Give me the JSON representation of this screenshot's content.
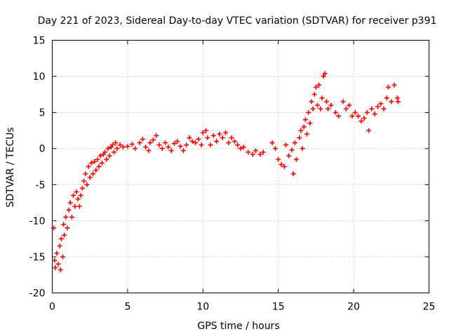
{
  "chart_data": {
    "type": "scatter",
    "title": "Day 221 of 2023, Sidereal Day-to-day VTEC variation (SDTVAR) for receiver p391",
    "xlabel": "GPS time / hours",
    "ylabel": "SDTVAR / TECUs",
    "xlim": [
      0,
      25
    ],
    "ylim": [
      -20,
      15
    ],
    "xticks": [
      "0",
      "5",
      "10",
      "15",
      "20",
      "25"
    ],
    "yticks": [
      "-20",
      "-15",
      "-10",
      "-5",
      "0",
      "5",
      "10",
      "15"
    ],
    "grid": true,
    "marker": "+",
    "color": "#ff0000",
    "series": [
      {
        "name": "SDTVAR",
        "points": [
          [
            0.1,
            -11.0
          ],
          [
            0.15,
            -15.5
          ],
          [
            0.2,
            -16.5
          ],
          [
            0.3,
            -14.5
          ],
          [
            0.4,
            -16.0
          ],
          [
            0.5,
            -13.5
          ],
          [
            0.55,
            -16.8
          ],
          [
            0.6,
            -12.5
          ],
          [
            0.7,
            -15.0
          ],
          [
            0.75,
            -10.5
          ],
          [
            0.8,
            -12.0
          ],
          [
            0.9,
            -9.5
          ],
          [
            1.0,
            -11.0
          ],
          [
            1.1,
            -8.5
          ],
          [
            1.2,
            -7.5
          ],
          [
            1.3,
            -9.5
          ],
          [
            1.4,
            -6.5
          ],
          [
            1.5,
            -8.0
          ],
          [
            1.6,
            -6.0
          ],
          [
            1.7,
            -7.0
          ],
          [
            1.8,
            -8.0
          ],
          [
            1.9,
            -6.5
          ],
          [
            2.0,
            -5.5
          ],
          [
            2.1,
            -4.5
          ],
          [
            2.2,
            -3.5
          ],
          [
            2.3,
            -5.0
          ],
          [
            2.4,
            -2.5
          ],
          [
            2.5,
            -4.0
          ],
          [
            2.6,
            -2.0
          ],
          [
            2.7,
            -3.5
          ],
          [
            2.8,
            -1.8
          ],
          [
            2.9,
            -3.0
          ],
          [
            3.0,
            -1.5
          ],
          [
            3.1,
            -2.5
          ],
          [
            3.2,
            -1.0
          ],
          [
            3.3,
            -2.0
          ],
          [
            3.4,
            -0.8
          ],
          [
            3.5,
            -0.5
          ],
          [
            3.6,
            -1.5
          ],
          [
            3.7,
            0.0
          ],
          [
            3.8,
            -1.0
          ],
          [
            3.9,
            0.2
          ],
          [
            4.0,
            0.5
          ],
          [
            4.1,
            -0.5
          ],
          [
            4.2,
            0.8
          ],
          [
            4.3,
            0.0
          ],
          [
            4.5,
            0.5
          ],
          [
            4.7,
            0.2
          ],
          [
            5.0,
            0.3
          ],
          [
            5.3,
            0.6
          ],
          [
            5.5,
            0.0
          ],
          [
            5.8,
            0.8
          ],
          [
            6.0,
            1.3
          ],
          [
            6.2,
            0.2
          ],
          [
            6.4,
            -0.3
          ],
          [
            6.5,
            0.8
          ],
          [
            6.7,
            1.2
          ],
          [
            6.9,
            1.8
          ],
          [
            7.1,
            0.5
          ],
          [
            7.3,
            0.0
          ],
          [
            7.5,
            0.8
          ],
          [
            7.7,
            0.2
          ],
          [
            7.9,
            -0.3
          ],
          [
            8.1,
            0.7
          ],
          [
            8.3,
            1.0
          ],
          [
            8.5,
            0.3
          ],
          [
            8.7,
            -0.3
          ],
          [
            8.9,
            0.5
          ],
          [
            9.1,
            1.5
          ],
          [
            9.3,
            1.0
          ],
          [
            9.5,
            0.8
          ],
          [
            9.7,
            1.3
          ],
          [
            9.9,
            0.5
          ],
          [
            10.0,
            2.2
          ],
          [
            10.2,
            2.5
          ],
          [
            10.3,
            1.5
          ],
          [
            10.5,
            0.5
          ],
          [
            10.7,
            1.8
          ],
          [
            10.9,
            1.0
          ],
          [
            11.1,
            2.0
          ],
          [
            11.3,
            1.5
          ],
          [
            11.5,
            2.2
          ],
          [
            11.7,
            0.8
          ],
          [
            11.9,
            1.5
          ],
          [
            12.1,
            1.0
          ],
          [
            12.3,
            0.5
          ],
          [
            12.5,
            0.0
          ],
          [
            12.7,
            0.2
          ],
          [
            13.0,
            -0.5
          ],
          [
            13.3,
            -0.8
          ],
          [
            13.5,
            -0.3
          ],
          [
            13.8,
            -0.8
          ],
          [
            14.0,
            -0.5
          ],
          [
            14.6,
            0.8
          ],
          [
            14.8,
            0.0
          ],
          [
            15.0,
            -1.5
          ],
          [
            15.2,
            -2.2
          ],
          [
            15.4,
            -2.5
          ],
          [
            15.5,
            0.5
          ],
          [
            15.7,
            -1.0
          ],
          [
            15.9,
            -0.2
          ],
          [
            16.0,
            -3.5
          ],
          [
            16.1,
            0.8
          ],
          [
            16.2,
            -1.5
          ],
          [
            16.4,
            1.5
          ],
          [
            16.5,
            2.5
          ],
          [
            16.6,
            0.0
          ],
          [
            16.7,
            3.0
          ],
          [
            16.8,
            4.0
          ],
          [
            16.9,
            2.0
          ],
          [
            17.0,
            5.0
          ],
          [
            17.1,
            3.5
          ],
          [
            17.2,
            6.5
          ],
          [
            17.3,
            5.5
          ],
          [
            17.4,
            7.5
          ],
          [
            17.5,
            8.5
          ],
          [
            17.6,
            6.0
          ],
          [
            17.7,
            8.8
          ],
          [
            17.8,
            5.5
          ],
          [
            17.9,
            7.0
          ],
          [
            18.0,
            10.0
          ],
          [
            18.1,
            10.4
          ],
          [
            18.2,
            6.5
          ],
          [
            18.3,
            5.5
          ],
          [
            18.5,
            6.0
          ],
          [
            18.8,
            5.0
          ],
          [
            19.0,
            4.5
          ],
          [
            19.3,
            6.5
          ],
          [
            19.5,
            5.5
          ],
          [
            19.7,
            6.0
          ],
          [
            19.9,
            4.5
          ],
          [
            20.1,
            5.0
          ],
          [
            20.3,
            4.5
          ],
          [
            20.5,
            3.8
          ],
          [
            20.7,
            4.2
          ],
          [
            20.9,
            5.0
          ],
          [
            21.0,
            2.5
          ],
          [
            21.2,
            5.5
          ],
          [
            21.4,
            4.8
          ],
          [
            21.6,
            5.8
          ],
          [
            21.8,
            6.2
          ],
          [
            22.0,
            5.5
          ],
          [
            22.2,
            7.0
          ],
          [
            22.3,
            8.5
          ],
          [
            22.5,
            6.5
          ],
          [
            22.7,
            8.8
          ],
          [
            22.9,
            7.0
          ],
          [
            22.95,
            6.5
          ]
        ]
      }
    ]
  }
}
